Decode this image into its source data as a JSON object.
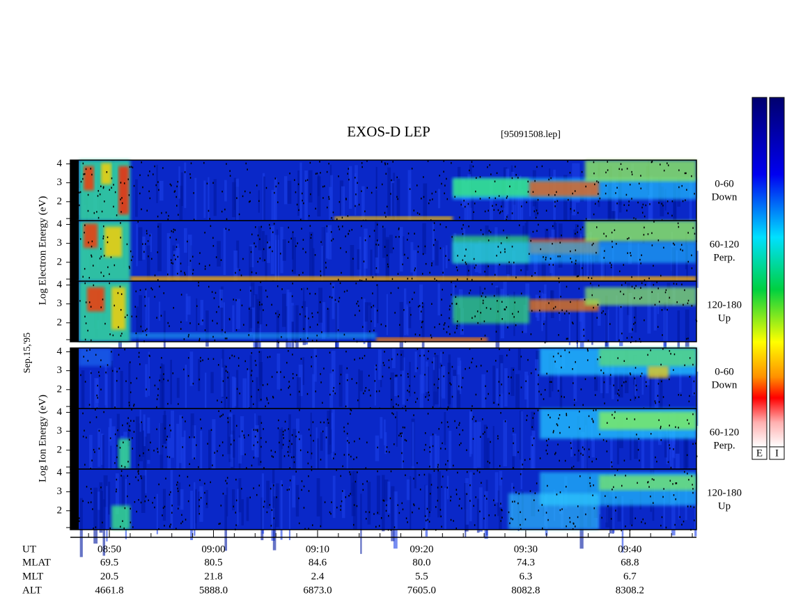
{
  "chart_data": {
    "type": "spectrogram",
    "title": "EXOS-D LEP",
    "file_label": "[95091508.lep]",
    "date_label": "Sep.15,'95",
    "ylim": [
      1,
      4.2
    ],
    "yticks": [
      2,
      3,
      4
    ],
    "xlim": [
      526.25,
      586.4
    ],
    "xticks": [
      {
        "value": 530,
        "label": "08:50"
      },
      {
        "value": 540,
        "label": "09:00"
      },
      {
        "value": 550,
        "label": "09:10"
      },
      {
        "value": 560,
        "label": "09:20"
      },
      {
        "value": 570,
        "label": "09:30"
      },
      {
        "value": 580,
        "label": "09:40"
      }
    ],
    "x_row_label": "UT",
    "ephemeris": [
      {
        "label": "MLAT",
        "values": [
          "69.5",
          "80.5",
          "84.6",
          "80.0",
          "74.3",
          "68.8"
        ]
      },
      {
        "label": "MLT",
        "values": [
          "20.5",
          "21.8",
          "2.4",
          "5.5",
          "6.3",
          "6.7"
        ]
      },
      {
        "label": "ALT",
        "values": [
          "4661.8",
          "5888.0",
          "6873.0",
          "7605.0",
          "8082.8",
          "8308.2"
        ]
      }
    ],
    "groups": [
      {
        "y_label": "Log  Electron  Energy (eV)",
        "panels": [
          {
            "angle": "0-60",
            "direction": "Down"
          },
          {
            "angle": "60-120",
            "direction": "Perp."
          },
          {
            "angle": "120-180",
            "direction": "Up"
          }
        ]
      },
      {
        "y_label": "Log  Ion  Energy (eV)",
        "panels": [
          {
            "angle": "0-60",
            "direction": "Down"
          },
          {
            "angle": "60-120",
            "direction": "Perp."
          },
          {
            "angle": "120-180",
            "direction": "Up"
          }
        ]
      }
    ],
    "colorbar_labels": [
      "E",
      "I"
    ]
  }
}
